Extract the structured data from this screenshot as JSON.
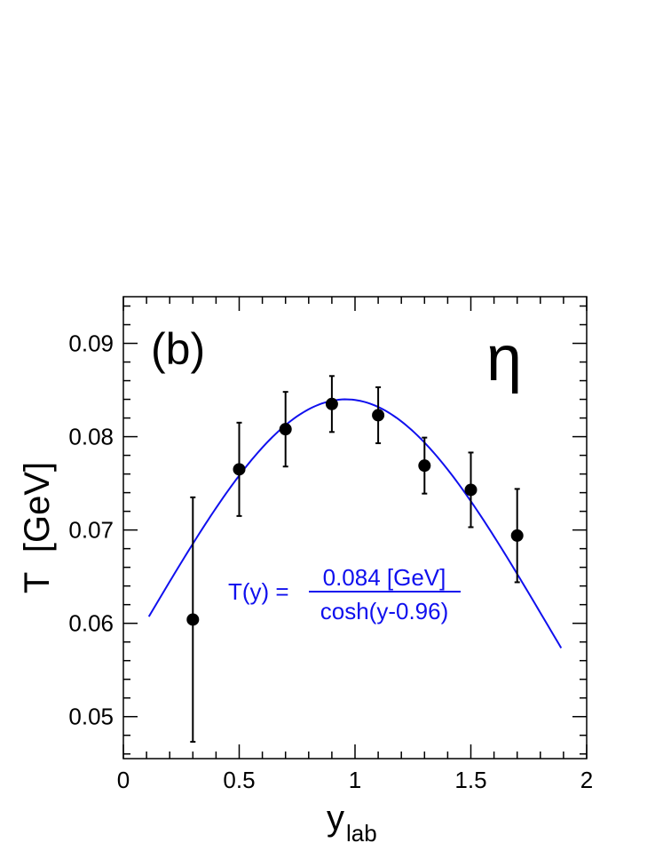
{
  "chart_data": {
    "type": "scatter",
    "panel_label": "(b)",
    "particle_label": "η",
    "xlabel_main": "y",
    "xlabel_sub": "lab",
    "ylabel": "T  [GeV]",
    "xlim": [
      0,
      2
    ],
    "ylim": [
      0.0455,
      0.095
    ],
    "x_ticks": [
      0,
      0.5,
      1,
      1.5,
      2
    ],
    "x_tick_labels": [
      "0",
      "0.5",
      "1",
      "1.5",
      "2"
    ],
    "y_ticks": [
      0.05,
      0.06,
      0.07,
      0.08,
      0.09
    ],
    "y_tick_labels": [
      "0.05",
      "0.06",
      "0.07",
      "0.08",
      "0.09"
    ],
    "grid": false,
    "points": {
      "x": [
        0.3,
        0.5,
        0.7,
        0.9,
        1.1,
        1.3,
        1.5,
        1.7
      ],
      "y": [
        0.0604,
        0.0765,
        0.0808,
        0.0835,
        0.0823,
        0.0769,
        0.0743,
        0.0694
      ],
      "err": [
        0.0131,
        0.005,
        0.004,
        0.003,
        0.003,
        0.003,
        0.004,
        0.005
      ],
      "color": "#000000"
    },
    "fit": {
      "T0": 0.084,
      "y0": 0.96,
      "x_range": [
        0.11,
        1.89
      ],
      "color": "#1010ee",
      "formula_lhs": "T(y) =",
      "formula_num": "0.084 [GeV]",
      "formula_den": "cosh(y-0.96)"
    }
  }
}
